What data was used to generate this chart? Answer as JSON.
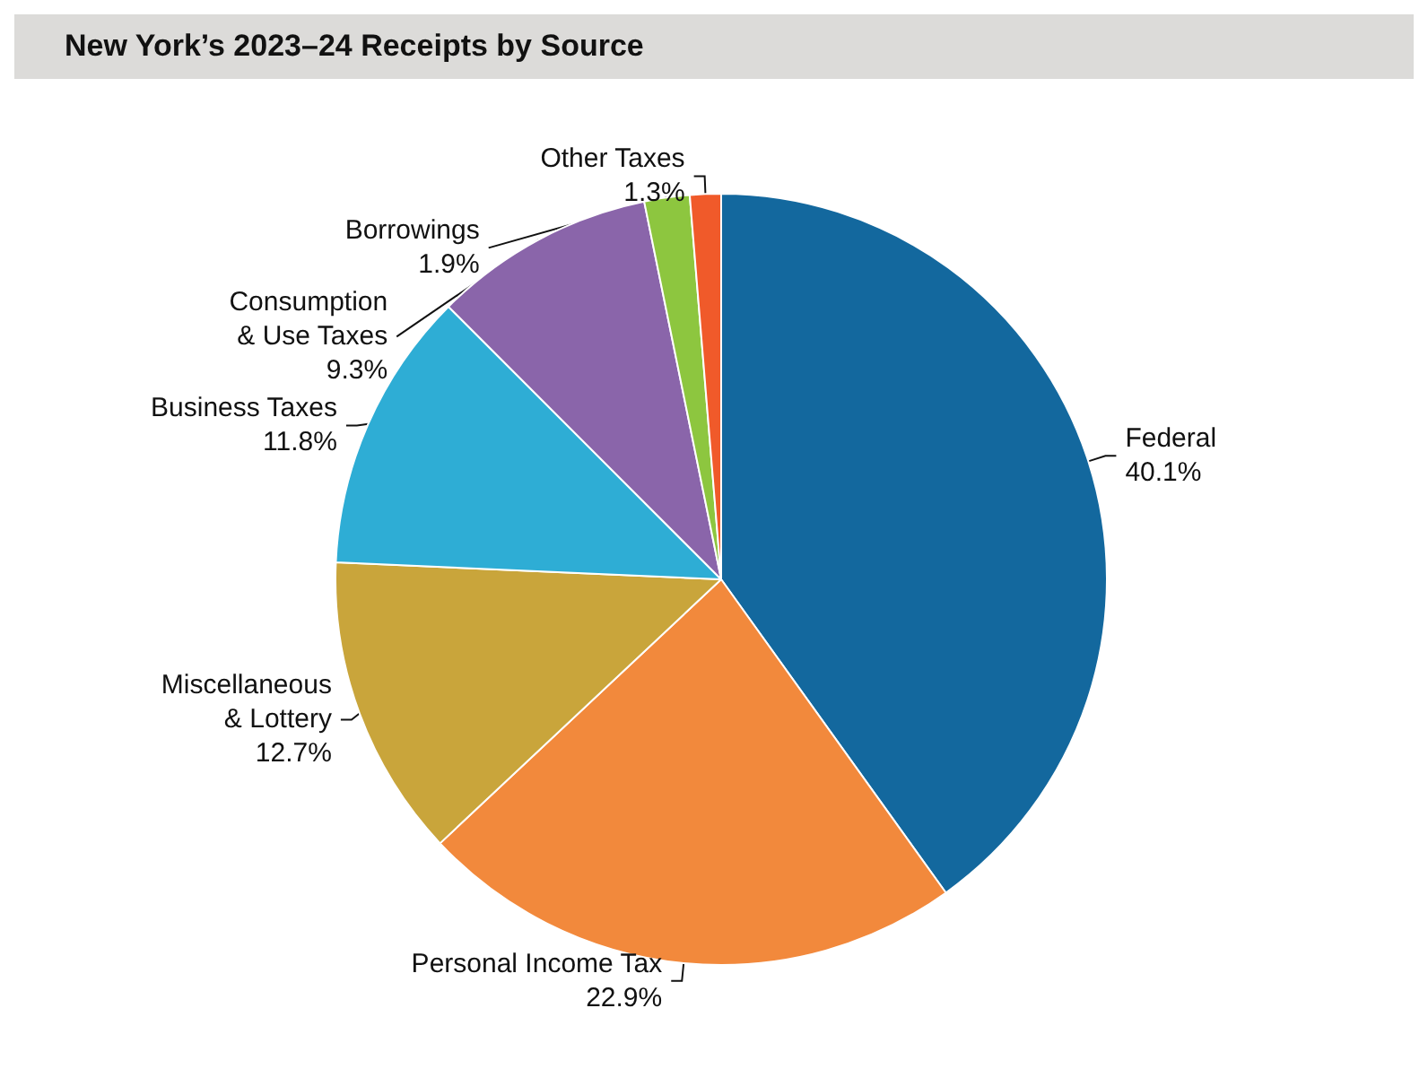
{
  "chart_data": {
    "type": "pie",
    "title": "New York’s 2023–24 Receipts by Source",
    "categories": [
      "Federal",
      "Personal Income Tax",
      "Miscellaneous\n& Lottery",
      "Business Taxes",
      "Consumption\n& Use Taxes",
      "Borrowings",
      "Other Taxes"
    ],
    "values": [
      40.1,
      22.9,
      12.7,
      11.8,
      9.3,
      1.9,
      1.3
    ],
    "value_labels": [
      "40.1%",
      "22.9%",
      "12.7%",
      "11.8%",
      "9.3%",
      "1.9%",
      "1.3%"
    ],
    "colors": [
      "#13689e",
      "#f2893c",
      "#c9a53b",
      "#2eadd5",
      "#8a65aa",
      "#8dc63f",
      "#f05a2a"
    ],
    "legend": false
  }
}
